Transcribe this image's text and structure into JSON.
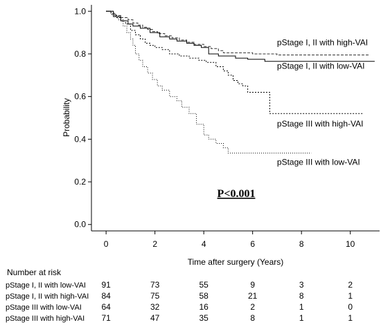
{
  "chart_data": {
    "type": "line",
    "subtype": "kaplan-meier step curve",
    "xlabel": "Time after surgery (Years)",
    "ylabel": "Probability",
    "xlim": [
      -0.6,
      11.2
    ],
    "ylim": [
      -0.03,
      1.03
    ],
    "xticks": [
      "0",
      "2",
      "4",
      "6",
      "8",
      "10"
    ],
    "yticks": [
      "0.0",
      "0.2",
      "0.4",
      "0.6",
      "0.8",
      "1.0"
    ],
    "grid": false,
    "annotation": "P<0.001",
    "series": [
      {
        "name": "pStage I, II with high-VAI",
        "dash": "4,2",
        "color": "#333333",
        "label_anchor": [
          7.0,
          0.84
        ],
        "points": [
          [
            0,
            1.0
          ],
          [
            0.2,
            0.99
          ],
          [
            0.4,
            0.98
          ],
          [
            0.6,
            0.97
          ],
          [
            0.9,
            0.96
          ],
          [
            1.1,
            0.945
          ],
          [
            1.3,
            0.935
          ],
          [
            1.5,
            0.925
          ],
          [
            1.7,
            0.915
          ],
          [
            1.9,
            0.905
          ],
          [
            2.1,
            0.895
          ],
          [
            2.4,
            0.885
          ],
          [
            2.7,
            0.875
          ],
          [
            3.0,
            0.865
          ],
          [
            3.3,
            0.855
          ],
          [
            3.6,
            0.845
          ],
          [
            4.0,
            0.835
          ],
          [
            4.3,
            0.825
          ],
          [
            4.6,
            0.815
          ],
          [
            4.8,
            0.805
          ],
          [
            5.3,
            0.805
          ],
          [
            6.0,
            0.8
          ],
          [
            6.7,
            0.8
          ],
          [
            7.0,
            0.795
          ],
          [
            10.8,
            0.795
          ]
        ]
      },
      {
        "name": "pStage I, II with low-VAI",
        "dash": "",
        "color": "#000000",
        "label_anchor": [
          7.0,
          0.73
        ],
        "points": [
          [
            0,
            1.0
          ],
          [
            0.3,
            0.975
          ],
          [
            0.6,
            0.955
          ],
          [
            0.9,
            0.94
          ],
          [
            1.1,
            0.93
          ],
          [
            1.4,
            0.92
          ],
          [
            1.8,
            0.9
          ],
          [
            2.2,
            0.88
          ],
          [
            2.6,
            0.87
          ],
          [
            2.9,
            0.86
          ],
          [
            3.3,
            0.85
          ],
          [
            3.6,
            0.84
          ],
          [
            3.9,
            0.83
          ],
          [
            4.2,
            0.8
          ],
          [
            4.6,
            0.79
          ],
          [
            5.0,
            0.79
          ],
          [
            5.3,
            0.78
          ],
          [
            5.8,
            0.775
          ],
          [
            6.2,
            0.775
          ],
          [
            6.5,
            0.765
          ],
          [
            11.0,
            0.765
          ]
        ]
      },
      {
        "name": "pStage III with high-VAI",
        "dash": "2,2",
        "color": "#000000",
        "label_anchor": [
          7.0,
          0.46
        ],
        "points": [
          [
            0,
            1.0
          ],
          [
            0.2,
            0.985
          ],
          [
            0.4,
            0.97
          ],
          [
            0.6,
            0.955
          ],
          [
            0.8,
            0.94
          ],
          [
            1.0,
            0.91
          ],
          [
            1.2,
            0.89
          ],
          [
            1.4,
            0.87
          ],
          [
            1.6,
            0.85
          ],
          [
            1.8,
            0.84
          ],
          [
            2.0,
            0.83
          ],
          [
            2.3,
            0.82
          ],
          [
            2.6,
            0.8
          ],
          [
            3.0,
            0.79
          ],
          [
            3.4,
            0.78
          ],
          [
            3.8,
            0.77
          ],
          [
            4.1,
            0.76
          ],
          [
            4.5,
            0.74
          ],
          [
            4.8,
            0.72
          ],
          [
            5.0,
            0.7
          ],
          [
            5.2,
            0.675
          ],
          [
            5.4,
            0.66
          ],
          [
            5.6,
            0.65
          ],
          [
            5.8,
            0.62
          ],
          [
            6.7,
            0.62
          ],
          [
            6.7,
            0.52
          ],
          [
            10.5,
            0.52
          ]
        ]
      },
      {
        "name": "pStage III with low-VAI",
        "dash": "1,2",
        "color": "#000000",
        "label_anchor": [
          7.0,
          0.28
        ],
        "points": [
          [
            0,
            1.0
          ],
          [
            0.3,
            0.98
          ],
          [
            0.5,
            0.96
          ],
          [
            0.7,
            0.93
          ],
          [
            0.85,
            0.9
          ],
          [
            1.0,
            0.87
          ],
          [
            1.1,
            0.84
          ],
          [
            1.2,
            0.8
          ],
          [
            1.35,
            0.77
          ],
          [
            1.5,
            0.74
          ],
          [
            1.7,
            0.71
          ],
          [
            1.9,
            0.68
          ],
          [
            2.1,
            0.65
          ],
          [
            2.3,
            0.63
          ],
          [
            2.6,
            0.6
          ],
          [
            2.9,
            0.58
          ],
          [
            3.1,
            0.55
          ],
          [
            3.4,
            0.52
          ],
          [
            3.7,
            0.47
          ],
          [
            4.0,
            0.42
          ],
          [
            4.2,
            0.4
          ],
          [
            4.5,
            0.38
          ],
          [
            4.8,
            0.36
          ],
          [
            5.0,
            0.335
          ],
          [
            6.1,
            0.335
          ],
          [
            8.4,
            0.335
          ]
        ]
      }
    ]
  },
  "risk_table": {
    "title": "Number at risk",
    "times": [
      0,
      2,
      4,
      6,
      8,
      10
    ],
    "rows": [
      {
        "label": "pStage I, II with low-VAI",
        "counts": [
          "91",
          "73",
          "55",
          "9",
          "3",
          "2"
        ]
      },
      {
        "label": "pStage I, II with high-VAI",
        "counts": [
          "84",
          "75",
          "58",
          "21",
          "8",
          "1"
        ]
      },
      {
        "label": "pStage III with low-VAI",
        "counts": [
          "64",
          "32",
          "16",
          "2",
          "1",
          "0"
        ]
      },
      {
        "label": "pStage III with high-VAI",
        "counts": [
          "71",
          "47",
          "35",
          "8",
          "1",
          "1"
        ]
      }
    ]
  }
}
